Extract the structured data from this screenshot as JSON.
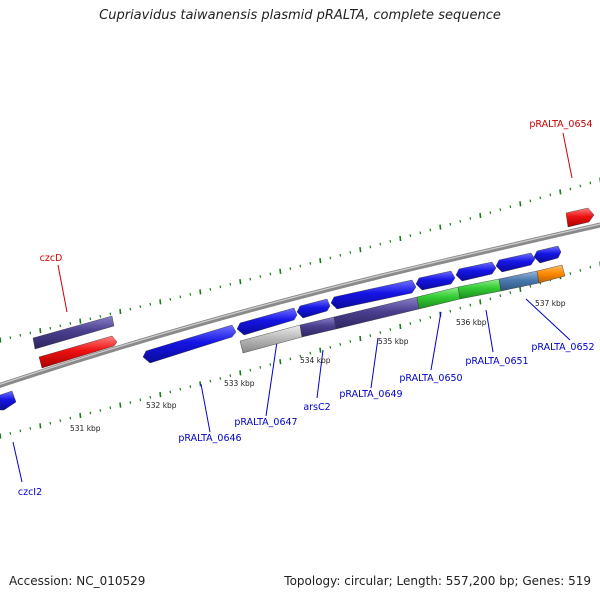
{
  "title": "Cupriavidus taiwanensis plasmid pRALTA, complete sequence",
  "footer": {
    "accession": "Accession: NC_010529",
    "stats": "Topology: circular; Length: 557,200 bp; Genes: 519"
  },
  "scale_labels": [
    "531 kbp",
    "532 kbp",
    "533 kbp",
    "534 kbp",
    "535 kbp",
    "536 kbp",
    "537 kbp"
  ],
  "gene_labels": [
    {
      "text": "pRALTA_0654",
      "color": "#cc0000"
    },
    {
      "text": "czcD",
      "color": "#cc0000"
    },
    {
      "text": "czcI2",
      "color": "#0000cc"
    },
    {
      "text": "pRALTA_0646",
      "color": "#0000cc"
    },
    {
      "text": "pRALTA_0647",
      "color": "#0000cc"
    },
    {
      "text": "arsC2",
      "color": "#0000cc"
    },
    {
      "text": "pRALTA_0649",
      "color": "#0000cc"
    },
    {
      "text": "pRALTA_0650",
      "color": "#0000cc"
    },
    {
      "text": "pRALTA_0651",
      "color": "#0000cc"
    },
    {
      "text": "pRALTA_0652",
      "color": "#0000cc"
    }
  ],
  "colors": {
    "backbone": "#8a8a8a",
    "tick": "#1a7a1a",
    "blue_gene": "#1515e6",
    "red_gene": "#ee1111",
    "purple_gene": "#4a3f8e",
    "green_gene": "#33cc33",
    "gray_gene": "#bbbbbb",
    "steel_gene": "#4a7ab0",
    "orange_gene": "#ff8c00"
  }
}
